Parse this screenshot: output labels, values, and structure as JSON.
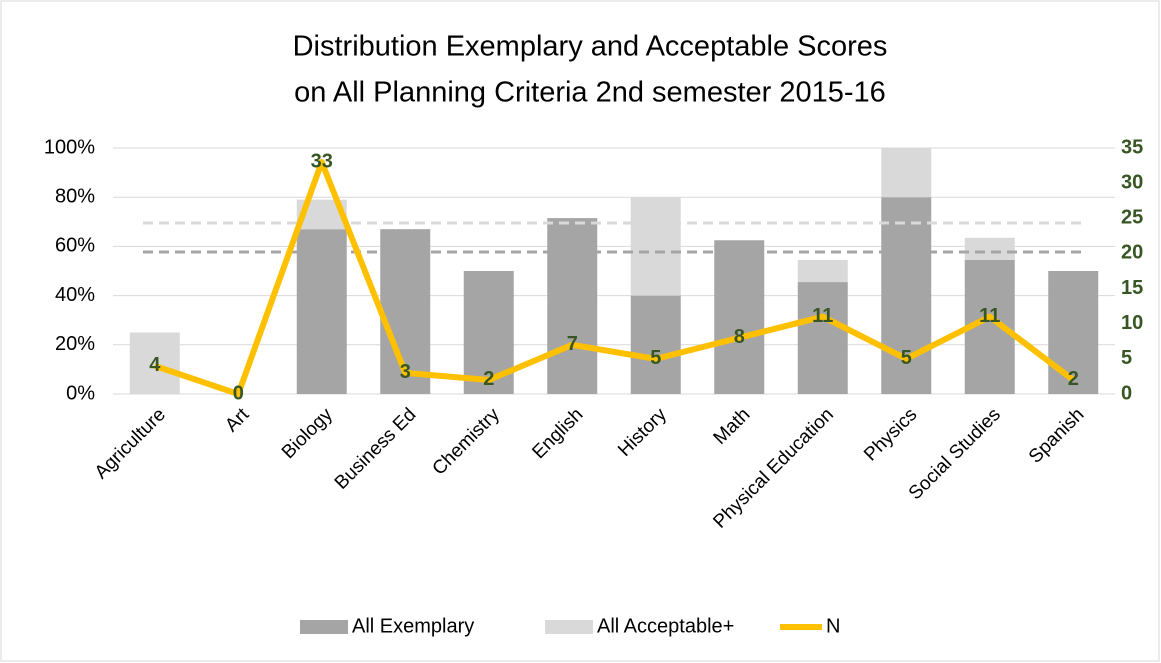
{
  "chart_data": {
    "type": "bar",
    "title": [
      "Distribution Exemplary and Acceptable Scores",
      "on All Planning Criteria 2nd semester 2015-16"
    ],
    "categories": [
      "Agriculture",
      "Art",
      "Biology",
      "Business Ed",
      "Chemistry",
      "English",
      "History",
      "Math",
      "Physical Education",
      "Physics",
      "Social Studies",
      "Spanish"
    ],
    "series": [
      {
        "name": "All Exemplary",
        "color": "#a5a5a5",
        "type": "bar",
        "values": [
          0,
          0,
          67,
          67,
          50,
          71.5,
          40,
          62.5,
          45.5,
          80,
          54.5,
          50
        ]
      },
      {
        "name": "All Acceptable+",
        "color": "#d9d9d9",
        "type": "bar",
        "values": [
          25,
          0,
          12,
          0,
          0,
          0,
          40,
          0,
          9,
          20,
          9,
          0
        ]
      },
      {
        "name": "N",
        "color": "#ffc000",
        "type": "line",
        "axis": "y2",
        "values": [
          4,
          0,
          33,
          3,
          2,
          7,
          5,
          8,
          11,
          5,
          11,
          2
        ]
      }
    ],
    "stacked": true,
    "hlines": [
      {
        "value": 57.7,
        "color": "#a5a5a5"
      },
      {
        "value": 69.5,
        "color": "#d9d9d9"
      }
    ],
    "ylim": [
      0,
      100
    ],
    "yticks": [
      {
        "value": 0,
        "label": "0%"
      },
      {
        "value": 20,
        "label": "20%"
      },
      {
        "value": 40,
        "label": "40%"
      },
      {
        "value": 60,
        "label": "60%"
      },
      {
        "value": 80,
        "label": "80%"
      },
      {
        "value": 100,
        "label": "100%"
      }
    ],
    "y2lim": [
      0,
      35
    ],
    "y2ticks": [
      0,
      5,
      10,
      15,
      20,
      25,
      30,
      35
    ],
    "grid": true,
    "legend": "bottom"
  }
}
